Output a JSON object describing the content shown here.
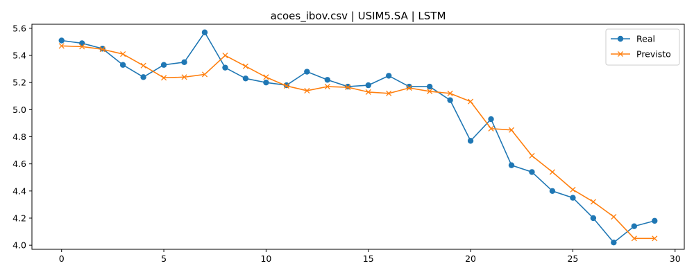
{
  "chart_data": {
    "type": "line",
    "title": "acoes_ibov.csv | USIM5.SA | LSTM",
    "xlabel": "",
    "ylabel": "",
    "xlim": [
      -1.45,
      30.45
    ],
    "ylim": [
      3.97,
      5.63
    ],
    "x_ticks": [
      0,
      5,
      10,
      15,
      20,
      25,
      30
    ],
    "y_ticks": [
      4.0,
      4.2,
      4.4,
      4.6,
      4.8,
      5.0,
      5.2,
      5.4,
      5.6
    ],
    "grid": false,
    "legend_position": "top-right",
    "x": [
      0,
      1,
      2,
      3,
      4,
      5,
      6,
      7,
      8,
      9,
      10,
      11,
      12,
      13,
      14,
      15,
      16,
      17,
      18,
      19,
      20,
      21,
      22,
      23,
      24,
      25,
      26,
      27,
      28,
      29
    ],
    "series": [
      {
        "name": "Real",
        "color": "#1f77b4",
        "marker": "circle",
        "values": [
          5.51,
          5.49,
          5.45,
          5.33,
          5.24,
          5.33,
          5.35,
          5.57,
          5.31,
          5.23,
          5.2,
          5.18,
          5.28,
          5.22,
          5.17,
          5.18,
          5.25,
          5.17,
          5.17,
          5.07,
          4.77,
          4.93,
          4.59,
          4.54,
          4.4,
          4.35,
          4.2,
          4.02,
          4.14,
          4.18
        ]
      },
      {
        "name": "Previsto",
        "color": "#ff7f0e",
        "marker": "x",
        "values": [
          5.47,
          5.465,
          5.445,
          5.41,
          5.325,
          5.235,
          5.24,
          5.26,
          5.4,
          5.32,
          5.24,
          5.175,
          5.14,
          5.17,
          5.165,
          5.13,
          5.12,
          5.16,
          5.135,
          5.12,
          5.06,
          4.86,
          4.85,
          4.66,
          4.54,
          4.41,
          4.32,
          4.21,
          4.05,
          4.05
        ]
      }
    ]
  }
}
